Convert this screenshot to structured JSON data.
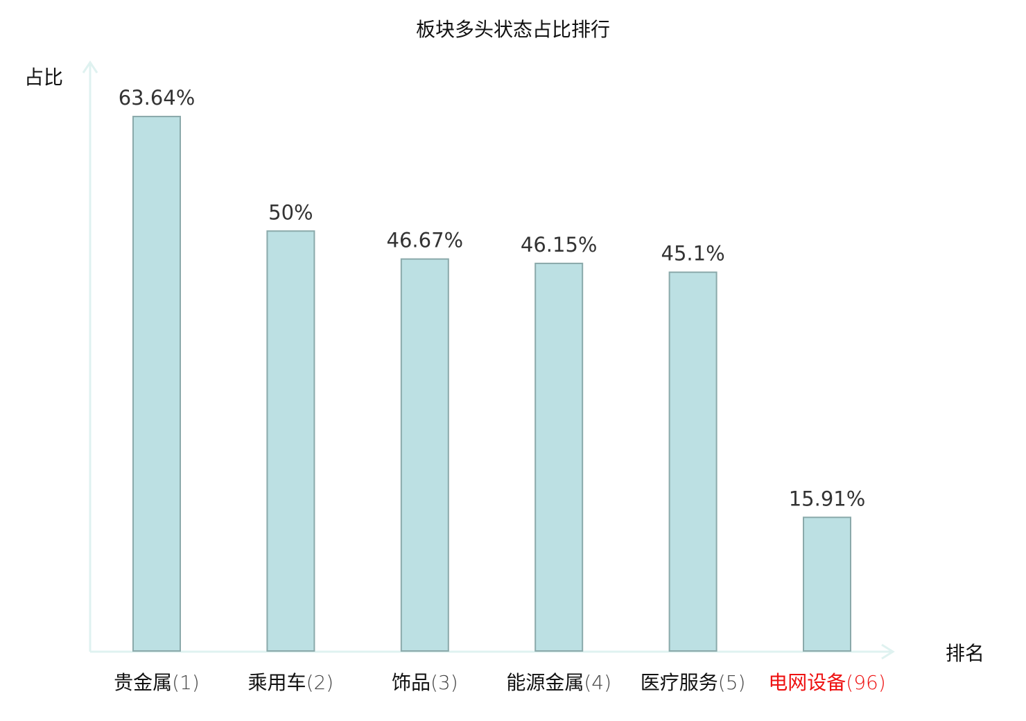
{
  "chart_data": {
    "type": "bar",
    "title": "板块多头状态占比排行",
    "ylabel": "占比",
    "xlabel": "排名",
    "ylim": [
      0,
      70
    ],
    "grid": false,
    "categories": [
      "贵金属",
      "乘用车",
      "饰品",
      "能源金属",
      "医疗服务",
      "电网设备"
    ],
    "ranks": [
      "(1)",
      "(2)",
      "(3)",
      "(4)",
      "(5)",
      "(96)"
    ],
    "values": [
      63.64,
      50,
      46.67,
      46.15,
      45.1,
      15.91
    ],
    "data_labels": [
      "63.64%",
      "50%",
      "46.67%",
      "46.15%",
      "45.1%",
      "15.91%"
    ],
    "highlight_index": 5,
    "colors": {
      "bar_fill": "#bce0e3",
      "bar_stroke": "#8aa9aa",
      "axis": "#dff2f0",
      "label_text": "#333333",
      "highlight": "#ee1111"
    }
  }
}
